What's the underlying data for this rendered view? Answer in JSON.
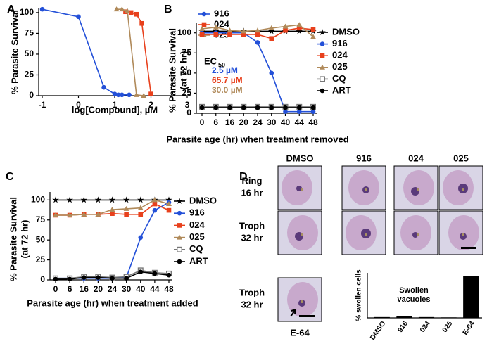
{
  "chart_data": [
    {
      "type": "line",
      "panel": "A",
      "ylabel": [
        "% Parasite Survival"
      ],
      "xlabel": "log[Compound], µM",
      "xlim": [
        -1,
        3
      ],
      "xticks": [
        -1,
        0,
        1,
        2,
        3
      ],
      "ylim": [
        0,
        105
      ],
      "yticks": [
        0,
        25,
        50,
        75,
        100
      ],
      "series": [
        {
          "name": "916",
          "color": "#2350d8",
          "marker": "circle",
          "x": [
            -1,
            0,
            0.7,
            1,
            1.1,
            1.2,
            1.4
          ],
          "values": [
            104,
            95,
            10,
            2,
            1,
            1,
            1
          ]
        },
        {
          "name": "024",
          "color": "#e8401c",
          "marker": "square",
          "x": [
            1.3,
            1.45,
            1.6,
            1.75,
            2.0
          ],
          "values": [
            101,
            100,
            98,
            87,
            2
          ]
        },
        {
          "name": "025",
          "color": "#b08a5a",
          "marker": "triangle",
          "x": [
            1.05,
            1.2,
            1.35,
            1.6,
            1.8
          ],
          "values": [
            104,
            104,
            102,
            1,
            0
          ]
        }
      ],
      "annotation": {
        "label": "EC",
        "subscript": "50",
        "values": [
          "2.5 µM",
          "65.7 µM",
          "30.0 µM"
        ]
      }
    },
    {
      "type": "line",
      "panel": "B",
      "ylabel": [
        "% Parasite Survival",
        "(at 72 hr)"
      ],
      "xlabel": "Parasite age (hr) when treatment removed",
      "categories": [
        "0",
        "6",
        "16",
        "20",
        "24",
        "30",
        "40",
        "44",
        "48"
      ],
      "ylim": [
        0,
        112
      ],
      "yticks": [
        0,
        25,
        50,
        75,
        100
      ],
      "series": [
        {
          "name": "DMSO",
          "color": "#000000",
          "marker": "star",
          "values": [
            102,
            102,
            102,
            102,
            102,
            102,
            102,
            102,
            102
          ]
        },
        {
          "name": "916",
          "color": "#2350d8",
          "marker": "circle",
          "values": [
            100,
            100,
            100,
            100,
            88,
            50,
            2,
            2,
            2
          ]
        },
        {
          "name": "024",
          "color": "#e8401c",
          "marker": "square",
          "values": [
            98,
            98,
            98,
            98,
            98,
            93,
            103,
            106,
            104
          ]
        },
        {
          "name": "025",
          "color": "#b08a5a",
          "marker": "triangle",
          "values": [
            105,
            107,
            103,
            102,
            103,
            106,
            108,
            110,
            95
          ]
        },
        {
          "name": "CQ",
          "color": "#777777",
          "marker": "open-square",
          "values": [
            8,
            8,
            8,
            8,
            8,
            8,
            8,
            8,
            8
          ]
        },
        {
          "name": "ART",
          "color": "#000000",
          "marker": "circle",
          "values": [
            7,
            7,
            7,
            7,
            7,
            7,
            7,
            7,
            7
          ]
        }
      ]
    },
    {
      "type": "line",
      "panel": "C",
      "ylabel": [
        "% Parasite Survival",
        "(at 72 hr)"
      ],
      "xlabel": "Parasite age (hr) when treatment added",
      "categories": [
        "0",
        "6",
        "16",
        "20",
        "24",
        "30",
        "40",
        "44",
        "48"
      ],
      "ylim": [
        0,
        110
      ],
      "yticks": [
        0,
        25,
        50,
        75,
        100
      ],
      "series": [
        {
          "name": "DMSO",
          "color": "#000000",
          "marker": "star",
          "values": [
            100,
            100,
            100,
            100,
            100,
            100,
            100,
            100,
            100
          ]
        },
        {
          "name": "916",
          "color": "#2350d8",
          "marker": "circle",
          "values": [
            2,
            2,
            2,
            2,
            2,
            3,
            53,
            87,
            97
          ]
        },
        {
          "name": "024",
          "color": "#e8401c",
          "marker": "square",
          "values": [
            81,
            81,
            82,
            82,
            83,
            82,
            82,
            95,
            87
          ]
        },
        {
          "name": "025",
          "color": "#b08a5a",
          "marker": "triangle",
          "values": [
            81,
            81,
            82,
            82,
            88,
            89,
            90,
            100,
            95
          ]
        },
        {
          "name": "CQ",
          "color": "#777777",
          "marker": "open-square",
          "values": [
            2,
            2,
            4,
            4,
            3,
            4,
            12,
            9,
            8
          ]
        },
        {
          "name": "ART",
          "color": "#000000",
          "marker": "circle",
          "values": [
            1,
            1,
            3,
            3,
            2,
            2,
            10,
            8,
            6
          ]
        }
      ]
    },
    {
      "type": "bar",
      "title": [
        "Swollen",
        "vacuoles"
      ],
      "ylabel": [
        "% swollen cells"
      ],
      "categories": [
        "DMSO",
        "916",
        "024",
        "025",
        "E-64"
      ],
      "values": [
        0.5,
        1,
        0.5,
        0.3,
        26
      ],
      "color": "#000000",
      "ylim": [
        0,
        28
      ]
    }
  ],
  "micrographs": {
    "panel": "D",
    "columns": [
      "DMSO",
      "916",
      "024",
      "025"
    ],
    "rows": [
      [
        "Ring",
        "16 hr"
      ],
      [
        "Troph",
        "32 hr"
      ]
    ],
    "inset": {
      "row": [
        "Troph",
        "32 hr"
      ],
      "label": "E-64"
    }
  }
}
